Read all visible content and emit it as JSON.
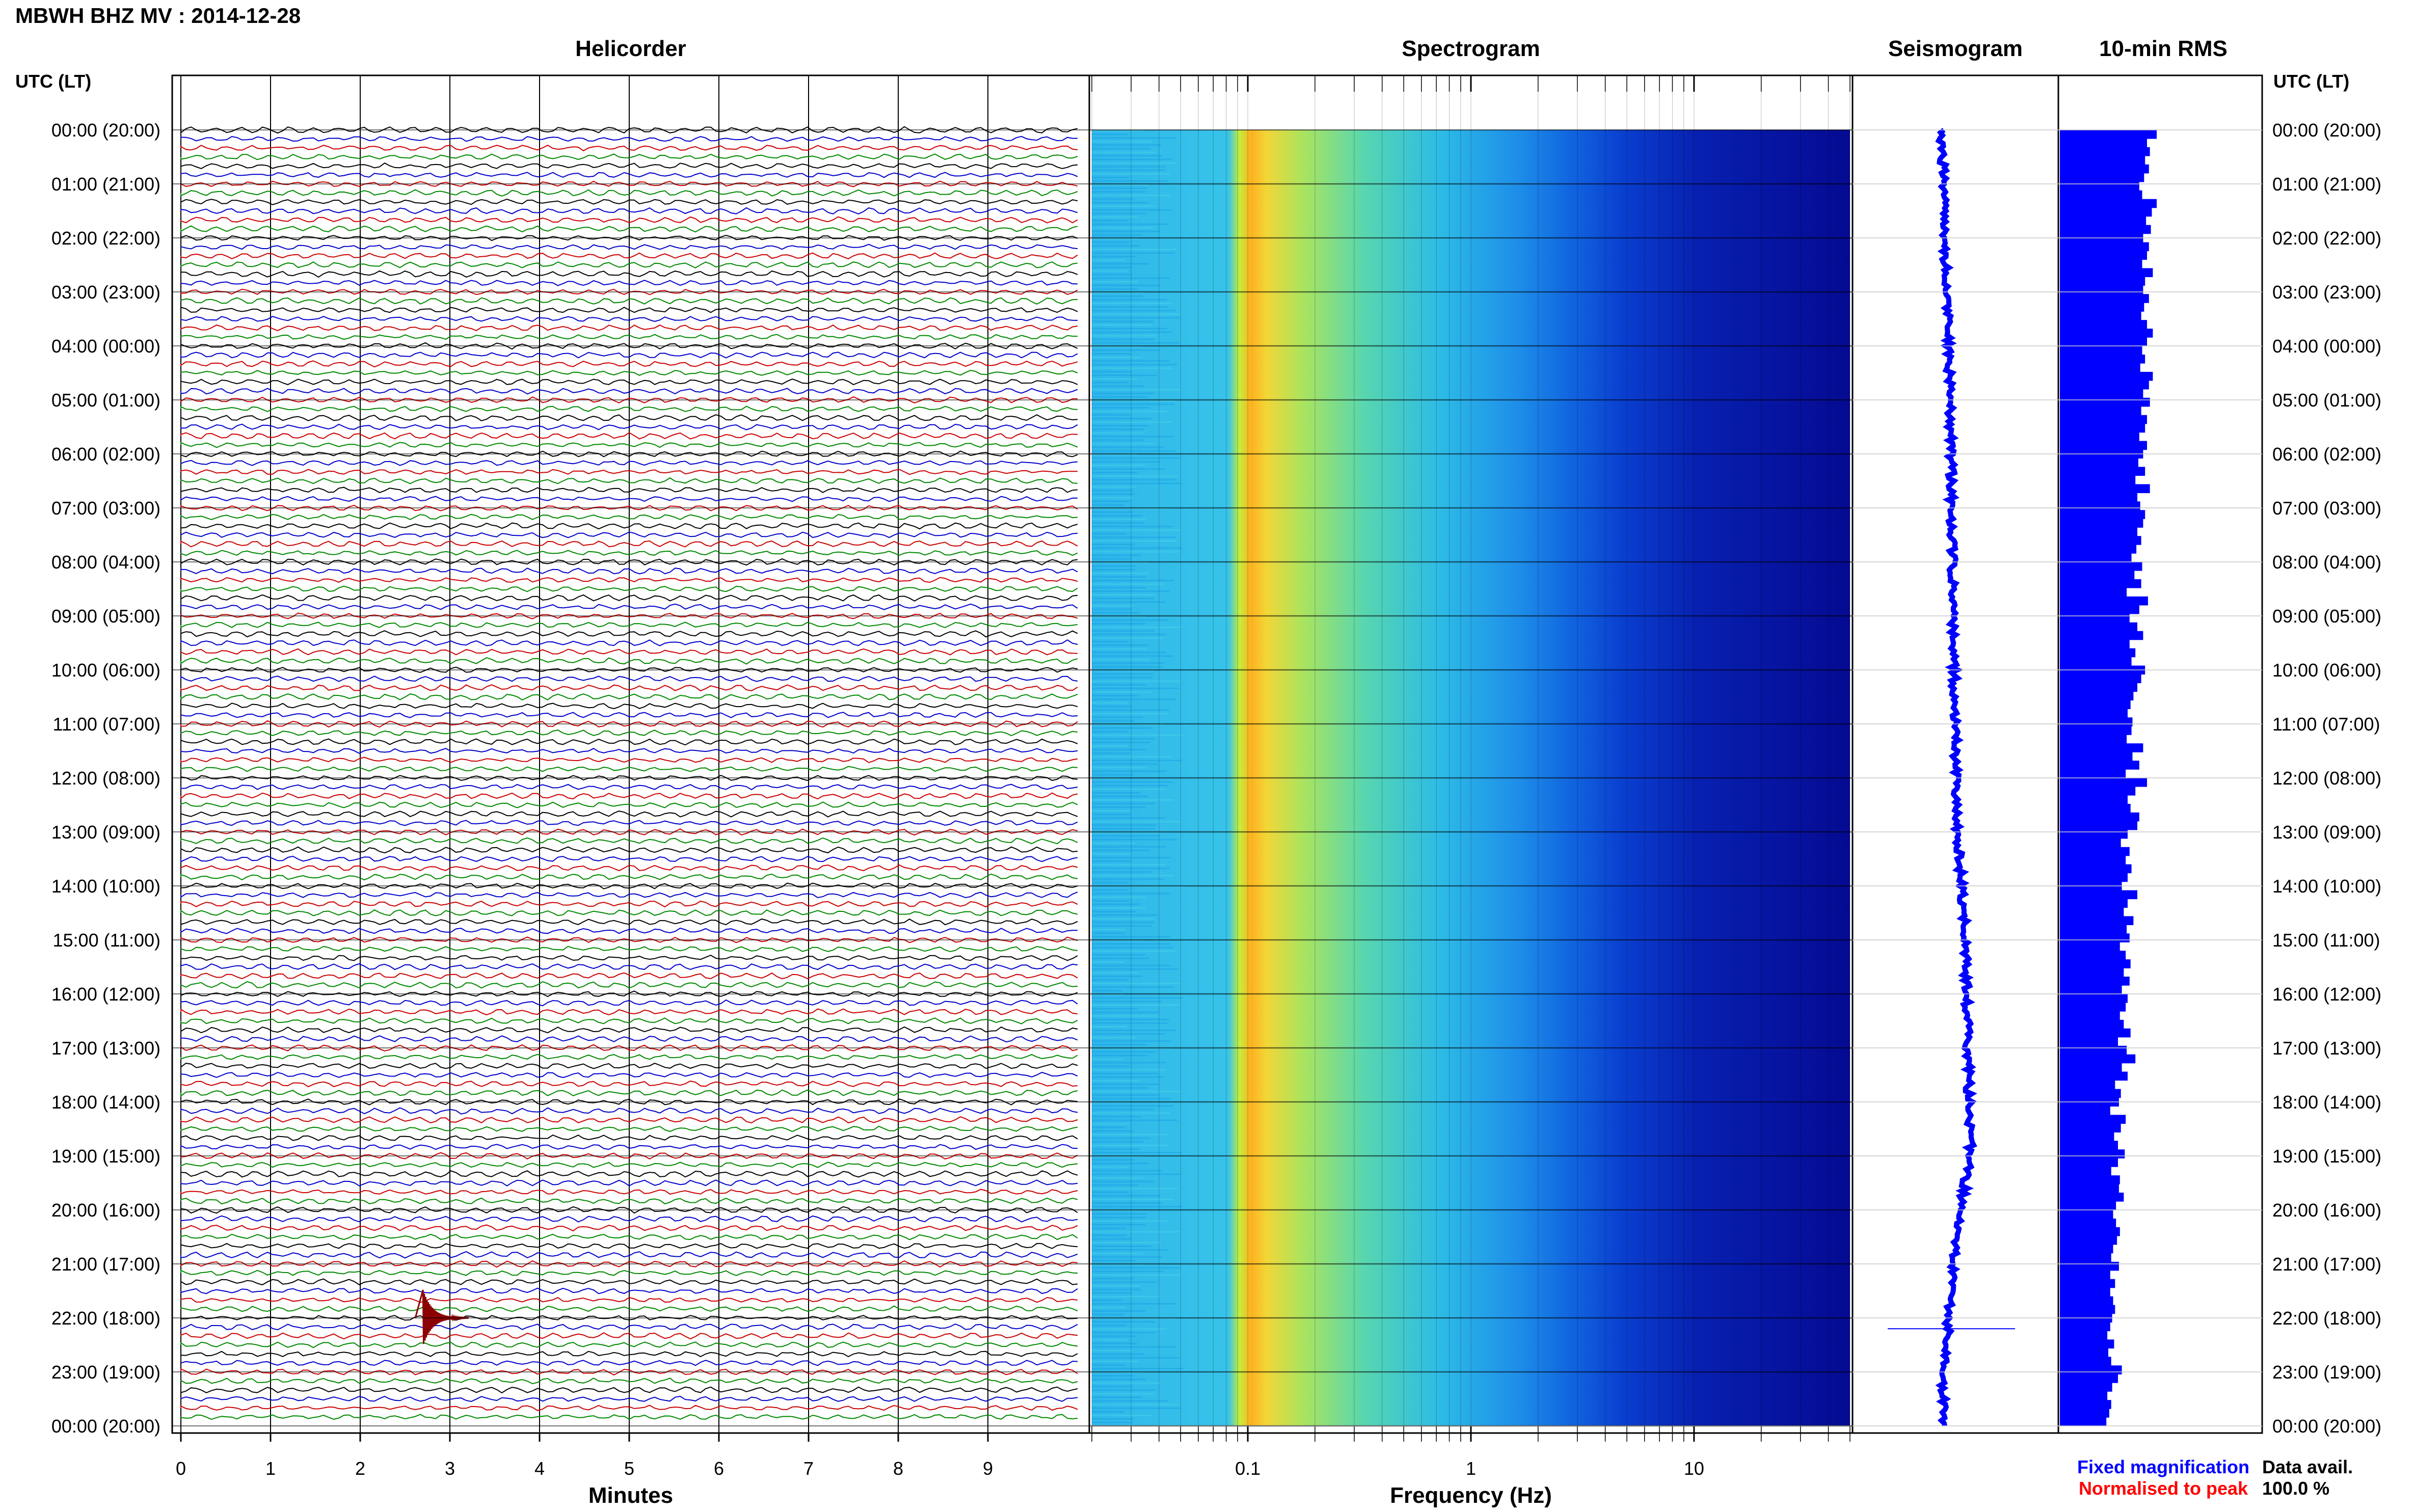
{
  "header": {
    "title": "MBWH BHZ MV : 2014-12-28",
    "tz_label_left": "UTC (LT)",
    "tz_label_right": "UTC (LT)"
  },
  "panels": {
    "helicorder": "Helicorder",
    "spectrogram": "Spectrogram",
    "seismogram": "Seismogram",
    "rms": "10-min RMS"
  },
  "axes": {
    "helicorder_xlabel": "Minutes",
    "spectrogram_xlabel": "Frequency (Hz)"
  },
  "legend": {
    "fixed": "Fixed magnification",
    "normalised": "Normalised to peak",
    "fixed_color": "#0000ff",
    "normalised_color": "#ff0000"
  },
  "availability": {
    "label": "Data avail.",
    "value": "100.0 %"
  },
  "colors": {
    "trace_cycle": [
      "#000000",
      "#0000cc",
      "#cc0000",
      "#008800"
    ],
    "event_color": "#8b0000",
    "seismo_color": "#0000ff",
    "rms_color": "#0000ff"
  },
  "chart_data": [
    {
      "type": "line",
      "name": "helicorder",
      "title": "Helicorder",
      "xlabel": "Minutes",
      "x_ticks": [
        0,
        1,
        2,
        3,
        4,
        5,
        6,
        7,
        8,
        9
      ],
      "xlim": [
        0,
        10
      ],
      "y_ticks_left": [
        "00:00 (20:00)",
        "01:00 (21:00)",
        "02:00 (22:00)",
        "03:00 (23:00)",
        "04:00 (00:00)",
        "05:00 (01:00)",
        "06:00 (02:00)",
        "07:00 (03:00)",
        "08:00 (04:00)",
        "09:00 (05:00)",
        "10:00 (06:00)",
        "11:00 (07:00)",
        "12:00 (08:00)",
        "13:00 (09:00)",
        "14:00 (10:00)",
        "15:00 (11:00)",
        "16:00 (12:00)",
        "17:00 (13:00)",
        "18:00 (14:00)",
        "19:00 (15:00)",
        "20:00 (16:00)",
        "21:00 (17:00)",
        "22:00 (18:00)",
        "23:00 (19:00)",
        "00:00 (20:00)"
      ],
      "traces_per_hour": 6,
      "event": {
        "time": "22:00",
        "minute": 2.7
      }
    },
    {
      "type": "heatmap",
      "name": "spectrogram",
      "title": "Spectrogram",
      "xlabel": "Frequency (Hz)",
      "x_scale": "log",
      "xlim": [
        0.02,
        50
      ],
      "x_ticks": [
        "0.1",
        "1",
        "10"
      ],
      "peak_band_hz": [
        0.12,
        0.25
      ]
    },
    {
      "type": "line",
      "name": "seismogram",
      "title": "Seismogram",
      "hours": [
        0,
        1,
        2,
        3,
        4,
        5,
        6,
        7,
        8,
        9,
        10,
        11,
        12,
        13,
        14,
        15,
        16,
        17,
        18,
        19,
        20,
        21,
        22,
        23,
        24
      ],
      "offset": [
        0.0,
        0.2,
        0.3,
        0.4,
        0.6,
        0.7,
        0.8,
        0.8,
        0.9,
        0.9,
        1.0,
        1.1,
        1.2,
        1.3,
        1.6,
        1.9,
        2.0,
        2.1,
        2.2,
        2.3,
        1.5,
        1.0,
        0.6,
        0.2,
        0.1
      ]
    },
    {
      "type": "bar",
      "name": "rms",
      "title": "10-min RMS",
      "orientation": "horizontal",
      "values": [
        100,
        90,
        93,
        88,
        92,
        87,
        82,
        85,
        100,
        95,
        89,
        94,
        86,
        92,
        90,
        85,
        96,
        88,
        86,
        92,
        87,
        84,
        90,
        96,
        90,
        85,
        88,
        83,
        96,
        92,
        86,
        93,
        84,
        90,
        88,
        82,
        90,
        86,
        81,
        88,
        78,
        93,
        80,
        83,
        88,
        86,
        80,
        84,
        79,
        74,
        85,
        77,
        84,
        69,
        91,
        82,
        72,
        80,
        86,
        72,
        78,
        74,
        88,
        84,
        80,
        76,
        73,
        70,
        75,
        74,
        69,
        86,
        75,
        82,
        68,
        90,
        78,
        70,
        73,
        82,
        80,
        70,
        63,
        72,
        68,
        74,
        70,
        64,
        80,
        70,
        66,
        76,
        69,
        72,
        62,
        68,
        73,
        66,
        72,
        64,
        70,
        68,
        62,
        66,
        73,
        60,
        69,
        78,
        64,
        70,
        57,
        63,
        61,
        52,
        68,
        63,
        56,
        60,
        67,
        60,
        53,
        62,
        61,
        66,
        58,
        55,
        58,
        62,
        59,
        55,
        53,
        61,
        52,
        57,
        52,
        55,
        57,
        54,
        52,
        49,
        56,
        50,
        53,
        64,
        60,
        54,
        49,
        53,
        51,
        48
      ]
    }
  ]
}
